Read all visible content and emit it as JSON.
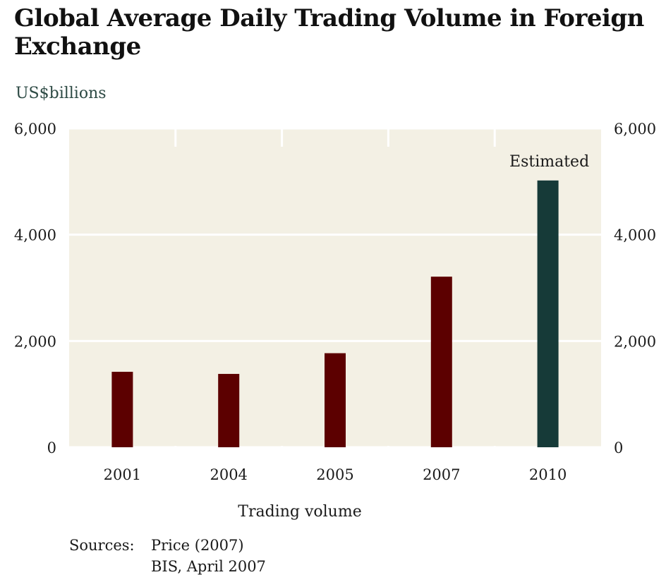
{
  "chart_data": {
    "type": "bar",
    "title": "Global Average Daily Trading Volume in Foreign Exchange",
    "unit_label": "US$billions",
    "xlabel": "Trading volume",
    "ylabel": "",
    "categories": [
      "2001",
      "2004",
      "2005",
      "2007",
      "2010"
    ],
    "values": [
      1420,
      1380,
      1770,
      3210,
      5020
    ],
    "bar_colors": [
      "#5c0000",
      "#5c0000",
      "#5c0000",
      "#5c0000",
      "#163a38"
    ],
    "annotation": {
      "category": "2010",
      "text": "Estimated"
    },
    "ylim": [
      0,
      6000
    ],
    "yticks": [
      0,
      2000,
      4000,
      6000
    ],
    "ytick_labels": [
      "0",
      "2,000",
      "4,000",
      "6,000"
    ],
    "grid": true,
    "plot_background": "#f3f0e4"
  },
  "sources": {
    "label": "Sources:",
    "items": [
      "Price (2007)",
      "BIS, April 2007"
    ]
  }
}
